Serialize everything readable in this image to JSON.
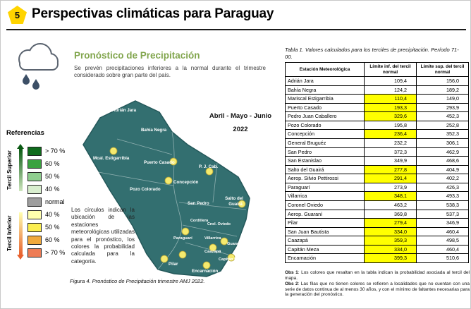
{
  "header": {
    "badge": "5",
    "title": "Perspectivas climáticas para Paraguay"
  },
  "forecast": {
    "title": "Pronóstico de Precipitación",
    "summary": "Se prevén precipitaciones inferiores a la normal durante el trimestre considerado sobre gran parte del país.",
    "period_months": "Abril - Mayo - Junio",
    "period_year": "2022",
    "circles_note": "Los círculos indican la ubicación de las estaciones meteorológicas utilizadas para el pronóstico, los colores la probabilidad calculada para la categoría.",
    "figure_caption": "Figura 4. Pronóstico de Precipitación trimestre AMJ 2022."
  },
  "legend": {
    "title": "Referencias",
    "upper_axis": "Tercil Superior",
    "lower_axis": "Tercil Inferior",
    "items": [
      {
        "label": "> 70 %",
        "color": "#0f6b1c"
      },
      {
        "label": "60 %",
        "color": "#3aa23f"
      },
      {
        "label": "50 %",
        "color": "#8fce8f"
      },
      {
        "label": "40 %",
        "color": "#d9efcf"
      },
      {
        "label": "normal",
        "color": "#9e9e9e"
      },
      {
        "label": "40 %",
        "color": "#ffffae"
      },
      {
        "label": "50 %",
        "color": "#fbee4f"
      },
      {
        "label": "60 %",
        "color": "#f0a93c"
      },
      {
        "label": "> 70 %",
        "color": "#ee7c55"
      }
    ]
  },
  "map": {
    "fill_color": "#336f70",
    "marker_color": "#f5ea6e",
    "labels": {
      "adrian_jara": "Adrián Jara",
      "bahia_negra": "Bahía Negra",
      "mcal_estigarribia": "Mcal. Estigarribia",
      "puerto_casado": "Puerto Casado",
      "pj_caballero": "P. J. Cab.",
      "concepcion": "Concepción",
      "pozo_colorado": "Pozo Colorado",
      "san_pedro": "San Pedro",
      "salto_1": "Salto del",
      "salto_2": "Guairá",
      "cordillera": "Cordillera",
      "cnel_oviedo": "Cnel. Oviedo",
      "paraguari": "Paraguarí",
      "villarrica": "Villarrica",
      "guarani": "Guaraní",
      "caazapa": "Caazapá",
      "capitan_meza": "Capitán Meza",
      "pilar": "Pilar",
      "encarnacion": "Encarnación"
    }
  },
  "table": {
    "caption": "Tabla 1. Valores calculados para los terciles de precipitación. Período 71-00.",
    "headers": [
      "Estación Meteorológica",
      "Límite inf. del tercil normal",
      "Límite sup. del tercil normal"
    ],
    "highlight_color": "#ffff00",
    "rows": [
      {
        "station": "Adrián Jara",
        "inf": "109,4",
        "sup": "156,0",
        "highlight": false
      },
      {
        "station": "Bahía Negra",
        "inf": "124,2",
        "sup": "189,2",
        "highlight": false
      },
      {
        "station": "Mariscal Estigarribia",
        "inf": "110,4",
        "sup": "149,0",
        "highlight": true
      },
      {
        "station": "Puerto Casado",
        "inf": "193,3",
        "sup": "293,9",
        "highlight": true
      },
      {
        "station": "Pedro Juan Caballero",
        "inf": "329,6",
        "sup": "452,3",
        "highlight": true
      },
      {
        "station": "Pozo Colorado",
        "inf": "195,8",
        "sup": "252,8",
        "highlight": false
      },
      {
        "station": "Concepción",
        "inf": "236,4",
        "sup": "352,3",
        "highlight": true
      },
      {
        "station": "General Bruguéz",
        "inf": "232,2",
        "sup": "306,1",
        "highlight": false
      },
      {
        "station": "San Pedro",
        "inf": "372,3",
        "sup": "462,9",
        "highlight": false
      },
      {
        "station": "San Estanislao",
        "inf": "349,9",
        "sup": "468,6",
        "highlight": false
      },
      {
        "station": "Salto del Guairá",
        "inf": "277,8",
        "sup": "404,9",
        "highlight": true
      },
      {
        "station": "Aerop. Silvio Pettirossi",
        "inf": "291,4",
        "sup": "402,2",
        "highlight": true
      },
      {
        "station": "Paraguarí",
        "inf": "273,9",
        "sup": "426,3",
        "highlight": false
      },
      {
        "station": "Villarrica",
        "inf": "348,1",
        "sup": "493,3",
        "highlight": true
      },
      {
        "station": "Coronel Oviedo",
        "inf": "463,2",
        "sup": "538,3",
        "highlight": false
      },
      {
        "station": "Aerop. Guaraní",
        "inf": "369,8",
        "sup": "537,3",
        "highlight": false
      },
      {
        "station": "Pilar",
        "inf": "279,4",
        "sup": "346,9",
        "highlight": true
      },
      {
        "station": "San Juan Bautista",
        "inf": "334,0",
        "sup": "460,4",
        "highlight": true
      },
      {
        "station": "Caazapá",
        "inf": "359,3",
        "sup": "498,5",
        "highlight": true
      },
      {
        "station": "Capitán Meza",
        "inf": "334,0",
        "sup": "460,4",
        "highlight": true
      },
      {
        "station": "Encarnación",
        "inf": "399,3",
        "sup": "510,6",
        "highlight": true
      }
    ],
    "obs1_label": "Obs 1",
    "obs1_text": ": Los colores que resaltan en la tabla indican la probabilidad asociada al tercil del mapa.",
    "obs2_label": "Obs 2",
    "obs2_text": ": Las filas que no tienen colores se refieren a localidades que no cuentan con una serie de datos continua de al menos 30 años, y con el mínimo de faltantes necesarias para la generación del pronóstico."
  }
}
